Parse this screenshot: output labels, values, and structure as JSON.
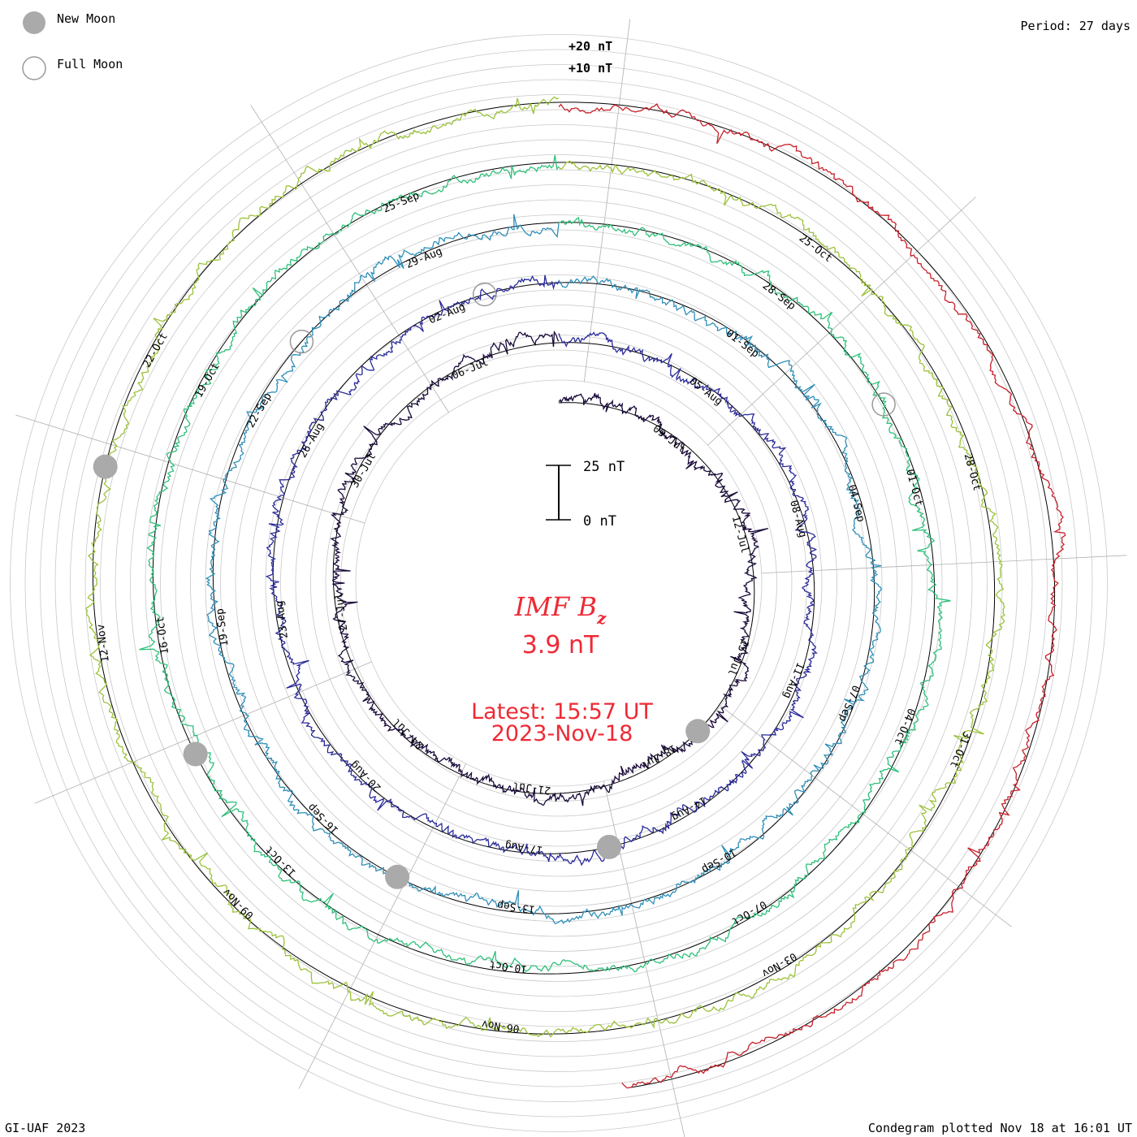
{
  "legend": {
    "new_moon_label": "New Moon",
    "full_moon_label": "Full Moon",
    "new_moon_color": "#aaaaaa",
    "full_moon_color": "#999999"
  },
  "period_label": "Period: 27 days",
  "scale_labels": {
    "plus20": "+20 nT",
    "plus10": "+10 nT"
  },
  "scale_bar": {
    "top": "25 nT",
    "bottom": "0 nT"
  },
  "center": {
    "title_main": "IMF B",
    "title_sub": "z",
    "value": "3.9 nT",
    "latest": "Latest: 15:57 UT",
    "date": "2023-Nov-18",
    "color": "#ee2a35"
  },
  "footer": {
    "left": "GI-UAF 2023",
    "right": "Condegram plotted Nov 18 at 16:01 UT"
  },
  "chart_data": {
    "type": "line",
    "title": "IMF Bz",
    "period_days": 27,
    "units": "nT",
    "cycles": [
      {
        "name": "cycle 1",
        "start": "23-Jun",
        "end": "20-Jul",
        "color": "#1a0a3a",
        "date_labels": [
          "09-Jul",
          "12-Jul",
          "15-Jul",
          "18-Jul",
          "21-Jul",
          "24-Jul",
          "27-Jul",
          "30-Jul",
          "06-Jul"
        ]
      },
      {
        "name": "cycle 2",
        "start": "20-Jul",
        "end": "16-Aug",
        "color": "#2a2a9a",
        "date_labels": [
          "05-Aug",
          "08-Aug",
          "11-Aug",
          "14-Aug",
          "17-Aug",
          "20-Aug",
          "23-Aug",
          "26-Aug",
          "02-Aug"
        ]
      },
      {
        "name": "cycle 3",
        "start": "16-Aug",
        "end": "12-Sep",
        "color": "#2f8fb8",
        "date_labels": [
          "01-Sep",
          "04-Sep",
          "07-Sep",
          "10-Sep",
          "13-Sep",
          "16-Sep",
          "19-Sep",
          "22-Sep",
          "29-Aug"
        ]
      },
      {
        "name": "cycle 4",
        "start": "12-Sep",
        "end": "09-Oct",
        "color": "#2fc07a",
        "date_labels": [
          "28-Sep",
          "01-Oct",
          "04-Oct",
          "07-Oct",
          "10-Oct",
          "13-Oct",
          "16-Oct",
          "19-Oct",
          "25-Sep"
        ]
      },
      {
        "name": "cycle 5",
        "start": "09-Oct",
        "end": "05-Nov",
        "color": "#9bc23a",
        "date_labels": [
          "25-Oct",
          "28-Oct",
          "31-Oct",
          "03-Nov",
          "06-Nov",
          "09-Nov",
          "12-Nov",
          "22-Oct"
        ]
      },
      {
        "name": "cycle 6",
        "start": "05-Nov",
        "end": "18-Nov",
        "color": "#c8202a",
        "date_labels": []
      }
    ],
    "new_moon_dates": [
      "18-Jul",
      "16-Aug",
      "15-Sep",
      "14-Oct",
      "13-Nov"
    ],
    "full_moon_dates": [
      "03-Jul",
      "01-Aug",
      "31-Aug",
      "29-Sep",
      "28-Oct"
    ],
    "latest_value": 3.9,
    "scale_reference": [
      0,
      25
    ]
  }
}
